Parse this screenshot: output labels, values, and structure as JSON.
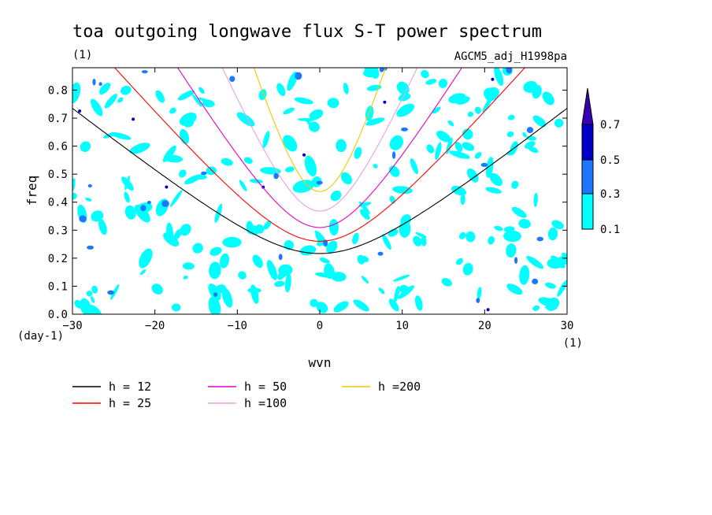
{
  "chart_data": {
    "type": "heatmap",
    "title": "toa outgoing longwave flux S-T power spectrum",
    "subtitle_left": "(1)",
    "subtitle_right": "AGCM5_adj_H1998pa",
    "xlabel": "wvn",
    "x_unit": "(1)",
    "ylabel": "freq",
    "y_unit": "(day-1)",
    "xlim": [
      -30,
      30
    ],
    "ylim": [
      0.0,
      0.88
    ],
    "x_ticks": [
      -30,
      -20,
      -10,
      0,
      10,
      20,
      30
    ],
    "x_tick_labels": [
      "−30",
      "−20",
      "−10",
      "0",
      "10",
      "20",
      "30"
    ],
    "y_ticks": [
      0.0,
      0.1,
      0.2,
      0.3,
      0.4,
      0.5,
      0.6,
      0.7,
      0.8
    ],
    "y_tick_labels": [
      "0.0",
      "0.1",
      "0.2",
      "0.3",
      "0.4",
      "0.5",
      "0.6",
      "0.7",
      "0.8"
    ],
    "colorbar": {
      "levels": [
        "0.1",
        "0.3",
        "0.5",
        "0.7"
      ],
      "colors": [
        "#00ffff",
        "#1e78ff",
        "#0000c8",
        "#3c00b4"
      ]
    },
    "contour_fill_color": "#00ffff",
    "dispersion_curves": [
      {
        "label": "h = 12",
        "h": 12,
        "color": "#000000"
      },
      {
        "label": "h = 25",
        "h": 25,
        "color": "#ff0000"
      },
      {
        "label": "h = 50",
        "h": 50,
        "color": "#e600c8"
      },
      {
        "label": "h =100",
        "h": 100,
        "color": "#e6a0e6"
      },
      {
        "label": "h =200",
        "h": 200,
        "color": "#f0c800"
      }
    ]
  }
}
